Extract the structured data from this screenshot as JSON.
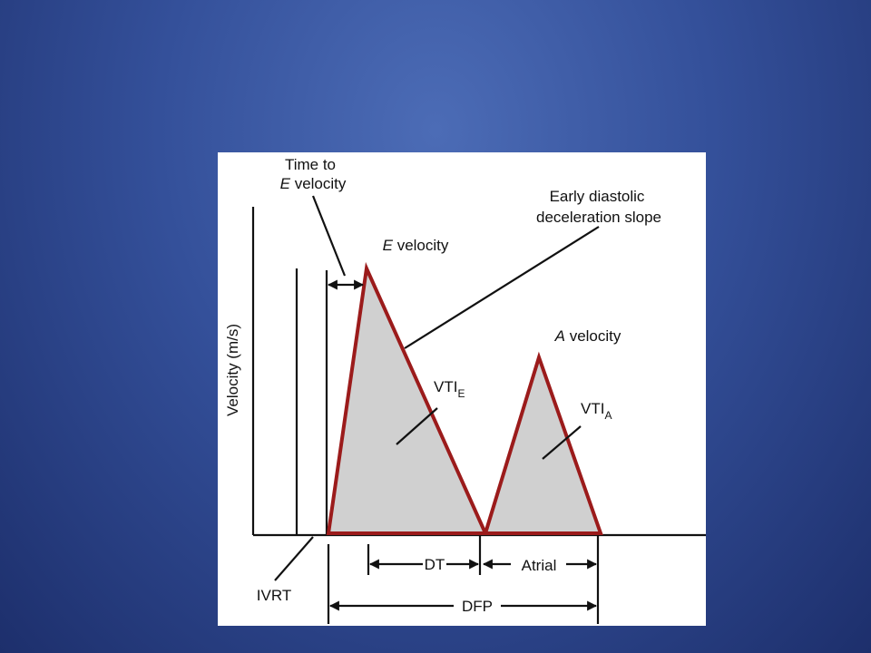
{
  "diagram": {
    "y_axis_label": "Velocity (m/s)",
    "time_to_e": {
      "line1": "Time to",
      "letter": "E",
      "rest": "velocity"
    },
    "deceleration": {
      "line1": "Early diastolic",
      "line2": "deceleration slope"
    },
    "e_velocity": {
      "letter": "E",
      "rest": "velocity"
    },
    "a_velocity": {
      "letter": "A",
      "rest": "velocity"
    },
    "vti_e": {
      "base": "VTI",
      "sub": "E"
    },
    "vti_a": {
      "base": "VTI",
      "sub": "A"
    },
    "ivrt": "IVRT",
    "dt": "DT",
    "atrial": "Atrial",
    "dfp": "DFP"
  }
}
